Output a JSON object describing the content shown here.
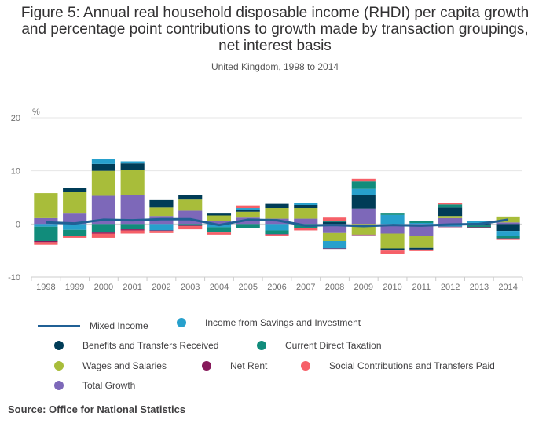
{
  "title": "Figure 5: Annual real household disposable income (RHDI) per capita growth and percentage point contributions to growth made by transaction groupings, net interest basis",
  "subtitle": "United Kingdom, 1998 to 2014",
  "source": "Source: Office for National Statistics",
  "chart_data": {
    "type": "bar",
    "stacked": true,
    "ylabel": "%",
    "ylim": [
      -10,
      20
    ],
    "yticks": [
      "20",
      "10",
      "0",
      "-10"
    ],
    "categories": [
      "1998",
      "1999",
      "2000",
      "2001",
      "2002",
      "2003",
      "2004",
      "2005",
      "2006",
      "2007",
      "2008",
      "2009",
      "2010",
      "2011",
      "2012",
      "2013",
      "2014"
    ],
    "series": [
      {
        "name": "Total Growth",
        "kind": "bar",
        "color": "#7d68b9",
        "values": [
          1.1,
          2.1,
          5.3,
          5.4,
          1.5,
          2.5,
          0.6,
          1.2,
          1.0,
          1.0,
          -1.7,
          2.9,
          -1.8,
          -2.3,
          1.1,
          0.1,
          0.3
        ]
      },
      {
        "name": "Wages and Salaries",
        "kind": "bar",
        "color": "#a8bd3a",
        "values": [
          4.7,
          3.9,
          4.7,
          4.8,
          1.6,
          2.1,
          1.0,
          1.1,
          2.0,
          2.0,
          -1.5,
          -2.0,
          -2.8,
          -2.2,
          0.4,
          0.1,
          1.1
        ]
      },
      {
        "name": "Benefits and Transfers Received",
        "kind": "bar",
        "color": "#003c57",
        "values": [
          0.0,
          0.7,
          1.3,
          1.2,
          1.4,
          0.8,
          0.5,
          0.4,
          0.8,
          0.6,
          0.4,
          2.5,
          -0.3,
          -0.3,
          1.6,
          -0.3,
          -1.3
        ]
      },
      {
        "name": "Income from Savings and Investment",
        "kind": "bar",
        "color": "#27a0cc",
        "values": [
          -0.5,
          -1.1,
          1.0,
          0.4,
          -1.2,
          0.1,
          -0.6,
          0.3,
          -1.2,
          0.3,
          -1.4,
          1.2,
          1.7,
          0.2,
          -0.5,
          0.4,
          -0.9
        ]
      },
      {
        "name": "Current Direct Taxation",
        "kind": "bar",
        "color": "#118c7b",
        "values": [
          -2.7,
          -1.1,
          -1.6,
          -1.0,
          0.0,
          -0.3,
          -0.9,
          -0.7,
          -0.7,
          -0.7,
          0.2,
          1.4,
          0.4,
          0.3,
          0.6,
          -0.3,
          -0.5
        ]
      },
      {
        "name": "Net Rent",
        "kind": "bar",
        "color": "#871a5b",
        "values": [
          -0.2,
          -0.1,
          -0.2,
          -0.2,
          -0.1,
          -0.1,
          -0.1,
          -0.1,
          -0.1,
          -0.1,
          -0.1,
          -0.1,
          -0.1,
          -0.1,
          -0.1,
          -0.1,
          -0.1
        ]
      },
      {
        "name": "Social Contributions and Transfers Paid",
        "kind": "bar",
        "color": "#f66068",
        "values": [
          -0.5,
          -0.3,
          -0.8,
          -0.6,
          -0.4,
          -0.6,
          -0.4,
          0.5,
          -0.3,
          -0.4,
          0.6,
          0.5,
          -0.7,
          -0.2,
          0.3,
          0.0,
          -0.2
        ]
      },
      {
        "name": "Mixed Income",
        "kind": "line",
        "color": "#206095",
        "values": [
          0.3,
          0.1,
          0.8,
          0.7,
          0.9,
          0.9,
          -0.2,
          0.8,
          0.7,
          -0.3,
          -0.2,
          -0.4,
          -0.2,
          -0.3,
          -0.1,
          0.0,
          0.8
        ]
      }
    ]
  },
  "legend": [
    {
      "label": "Mixed Income",
      "type": "line",
      "color": "#206095"
    },
    {
      "label": "Income from Savings and Investment",
      "type": "dot",
      "color": "#27a0cc"
    },
    {
      "label": "Benefits and Transfers Received",
      "type": "dot",
      "color": "#003c57"
    },
    {
      "label": "Current Direct Taxation",
      "type": "dot",
      "color": "#118c7b"
    },
    {
      "label": "Wages and Salaries",
      "type": "dot",
      "color": "#a8bd3a"
    },
    {
      "label": "Net Rent",
      "type": "dot",
      "color": "#871a5b"
    },
    {
      "label": "Social Contributions and Transfers Paid",
      "type": "dot",
      "color": "#f66068"
    },
    {
      "label": "Total Growth",
      "type": "dot",
      "color": "#7d68b9"
    }
  ]
}
